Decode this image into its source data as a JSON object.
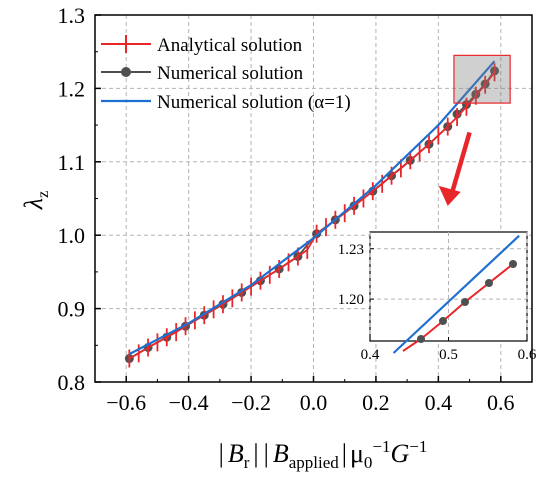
{
  "chart_data": {
    "type": "line",
    "xlabel_parts": {
      "bar1": "|",
      "b": "B",
      "b_sub": "r",
      "bar2": "|",
      "bar3": "|",
      "b2": "B",
      "b2_sub": "applied",
      "bar4": "|",
      "mu": "μ",
      "mu_sub": "0",
      "mu_sup": "−1",
      "g": "G",
      "g_sup": "−1"
    },
    "ylabel_parts": {
      "lambda": "λ",
      "sub": "z"
    },
    "xlim": [
      -0.7,
      0.7
    ],
    "ylim": [
      0.8,
      1.3
    ],
    "xticks": [
      -0.6,
      -0.4,
      -0.2,
      0.0,
      0.2,
      0.4,
      0.6
    ],
    "xtick_labels": [
      "−0.6",
      "−0.4",
      "−0.2",
      "0.0",
      "0.2",
      "0.4",
      "0.6"
    ],
    "yticks": [
      0.8,
      0.9,
      1.0,
      1.1,
      1.2,
      1.3
    ],
    "ytick_labels": [
      "0.8",
      "0.9",
      "1.0",
      "1.1",
      "1.2",
      "1.3"
    ],
    "grid": true,
    "legend_position": "top-left",
    "series": [
      {
        "name": "Analytical solution",
        "color": "#e8272b",
        "marker": "vertical-tick",
        "x": [
          -0.59,
          -0.56,
          -0.53,
          -0.5,
          -0.47,
          -0.44,
          -0.41,
          -0.38,
          -0.35,
          -0.32,
          -0.29,
          -0.26,
          -0.23,
          -0.2,
          -0.17,
          -0.14,
          -0.11,
          -0.08,
          -0.05,
          -0.02,
          0.01,
          0.04,
          0.07,
          0.1,
          0.13,
          0.16,
          0.19,
          0.22,
          0.25,
          0.28,
          0.31,
          0.34,
          0.37,
          0.4,
          0.43,
          0.46,
          0.49,
          0.52,
          0.55,
          0.58
        ],
        "y": [
          0.832,
          0.839,
          0.847,
          0.854,
          0.861,
          0.868,
          0.876,
          0.884,
          0.891,
          0.899,
          0.906,
          0.914,
          0.922,
          0.93,
          0.938,
          0.946,
          0.954,
          0.963,
          0.971,
          0.98,
          1.002,
          1.011,
          1.021,
          1.03,
          1.04,
          1.05,
          1.06,
          1.07,
          1.081,
          1.091,
          1.102,
          1.113,
          1.124,
          1.136,
          1.148,
          1.161,
          1.175,
          1.19,
          1.205,
          1.222
        ]
      },
      {
        "name": "Numerical solution",
        "color": "#505050",
        "marker": "circle",
        "x": [
          -0.59,
          -0.53,
          -0.47,
          -0.41,
          -0.35,
          -0.29,
          -0.23,
          -0.17,
          -0.11,
          -0.05,
          0.01,
          0.07,
          0.13,
          0.19,
          0.25,
          0.31,
          0.37,
          0.43,
          0.465,
          0.497,
          0.53,
          0.56,
          0.59
        ],
        "y": [
          0.832,
          0.847,
          0.861,
          0.876,
          0.891,
          0.906,
          0.922,
          0.938,
          0.954,
          0.971,
          1.002,
          1.021,
          1.04,
          1.06,
          1.081,
          1.102,
          1.124,
          1.148,
          1.1915,
          1.196,
          1.2005,
          1.2045,
          1.2285
        ]
      },
      {
        "name": "Numerical solution (α=1)",
        "color": "#1f6fd1",
        "marker": "none",
        "x": [
          -0.59,
          -0.4,
          -0.2,
          0.0,
          0.2,
          0.4,
          0.58
        ],
        "y": [
          0.838,
          0.88,
          0.932,
          0.996,
          1.068,
          1.15,
          1.237
        ]
      }
    ],
    "annotations": {
      "zoom_box": {
        "x": [
          0.45,
          0.63
        ],
        "y": [
          1.18,
          1.245
        ],
        "color": "#e8272b"
      },
      "arrow": {
        "from": [
          0.5,
          1.14
        ],
        "to": [
          0.43,
          1.04
        ],
        "color": "#e8272b"
      }
    },
    "inset": {
      "xlim": [
        0.4,
        0.6
      ],
      "ylim": [
        1.175,
        1.24
      ],
      "xticks": [
        0.4,
        0.5,
        0.6
      ],
      "xtick_labels": [
        "0.4",
        "0.5",
        "0.6"
      ],
      "yticks": [
        1.2,
        1.23
      ],
      "ytick_labels": [
        "1.20",
        "1.23"
      ],
      "analytical": {
        "x": [
          0.44,
          0.47,
          0.5,
          0.53,
          0.56,
          0.59
        ],
        "y": [
          1.173,
          1.186,
          1.197,
          1.208,
          1.218,
          1.229
        ]
      },
      "numerical": {
        "x": [
          0.465,
          0.497,
          0.53,
          0.562,
          0.594
        ],
        "y": [
          1.1915,
          1.196,
          1.2005,
          1.2045,
          1.2285
        ]
      },
      "numerical_alpha": {
        "x": [
          0.43,
          0.59
        ],
        "y": [
          1.175,
          1.233
        ]
      }
    }
  }
}
